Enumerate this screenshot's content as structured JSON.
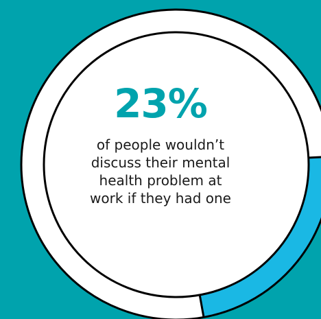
{
  "chart_data": {
    "type": "pie",
    "variant": "donut",
    "slices": [
      {
        "value": 23,
        "color": "#1ab8e4"
      },
      {
        "value": 77,
        "color": "#ffffff"
      }
    ],
    "headline": "23%",
    "caption": "of people wouldn’t discuss their mental health problem at work if they had one"
  },
  "colors": {
    "background": "#00a3ad",
    "accent": "#00a3ad",
    "highlight_segment": "#1ab8e4",
    "ring": "#ffffff",
    "outline": "#000000",
    "text": "#1a1a1a"
  }
}
